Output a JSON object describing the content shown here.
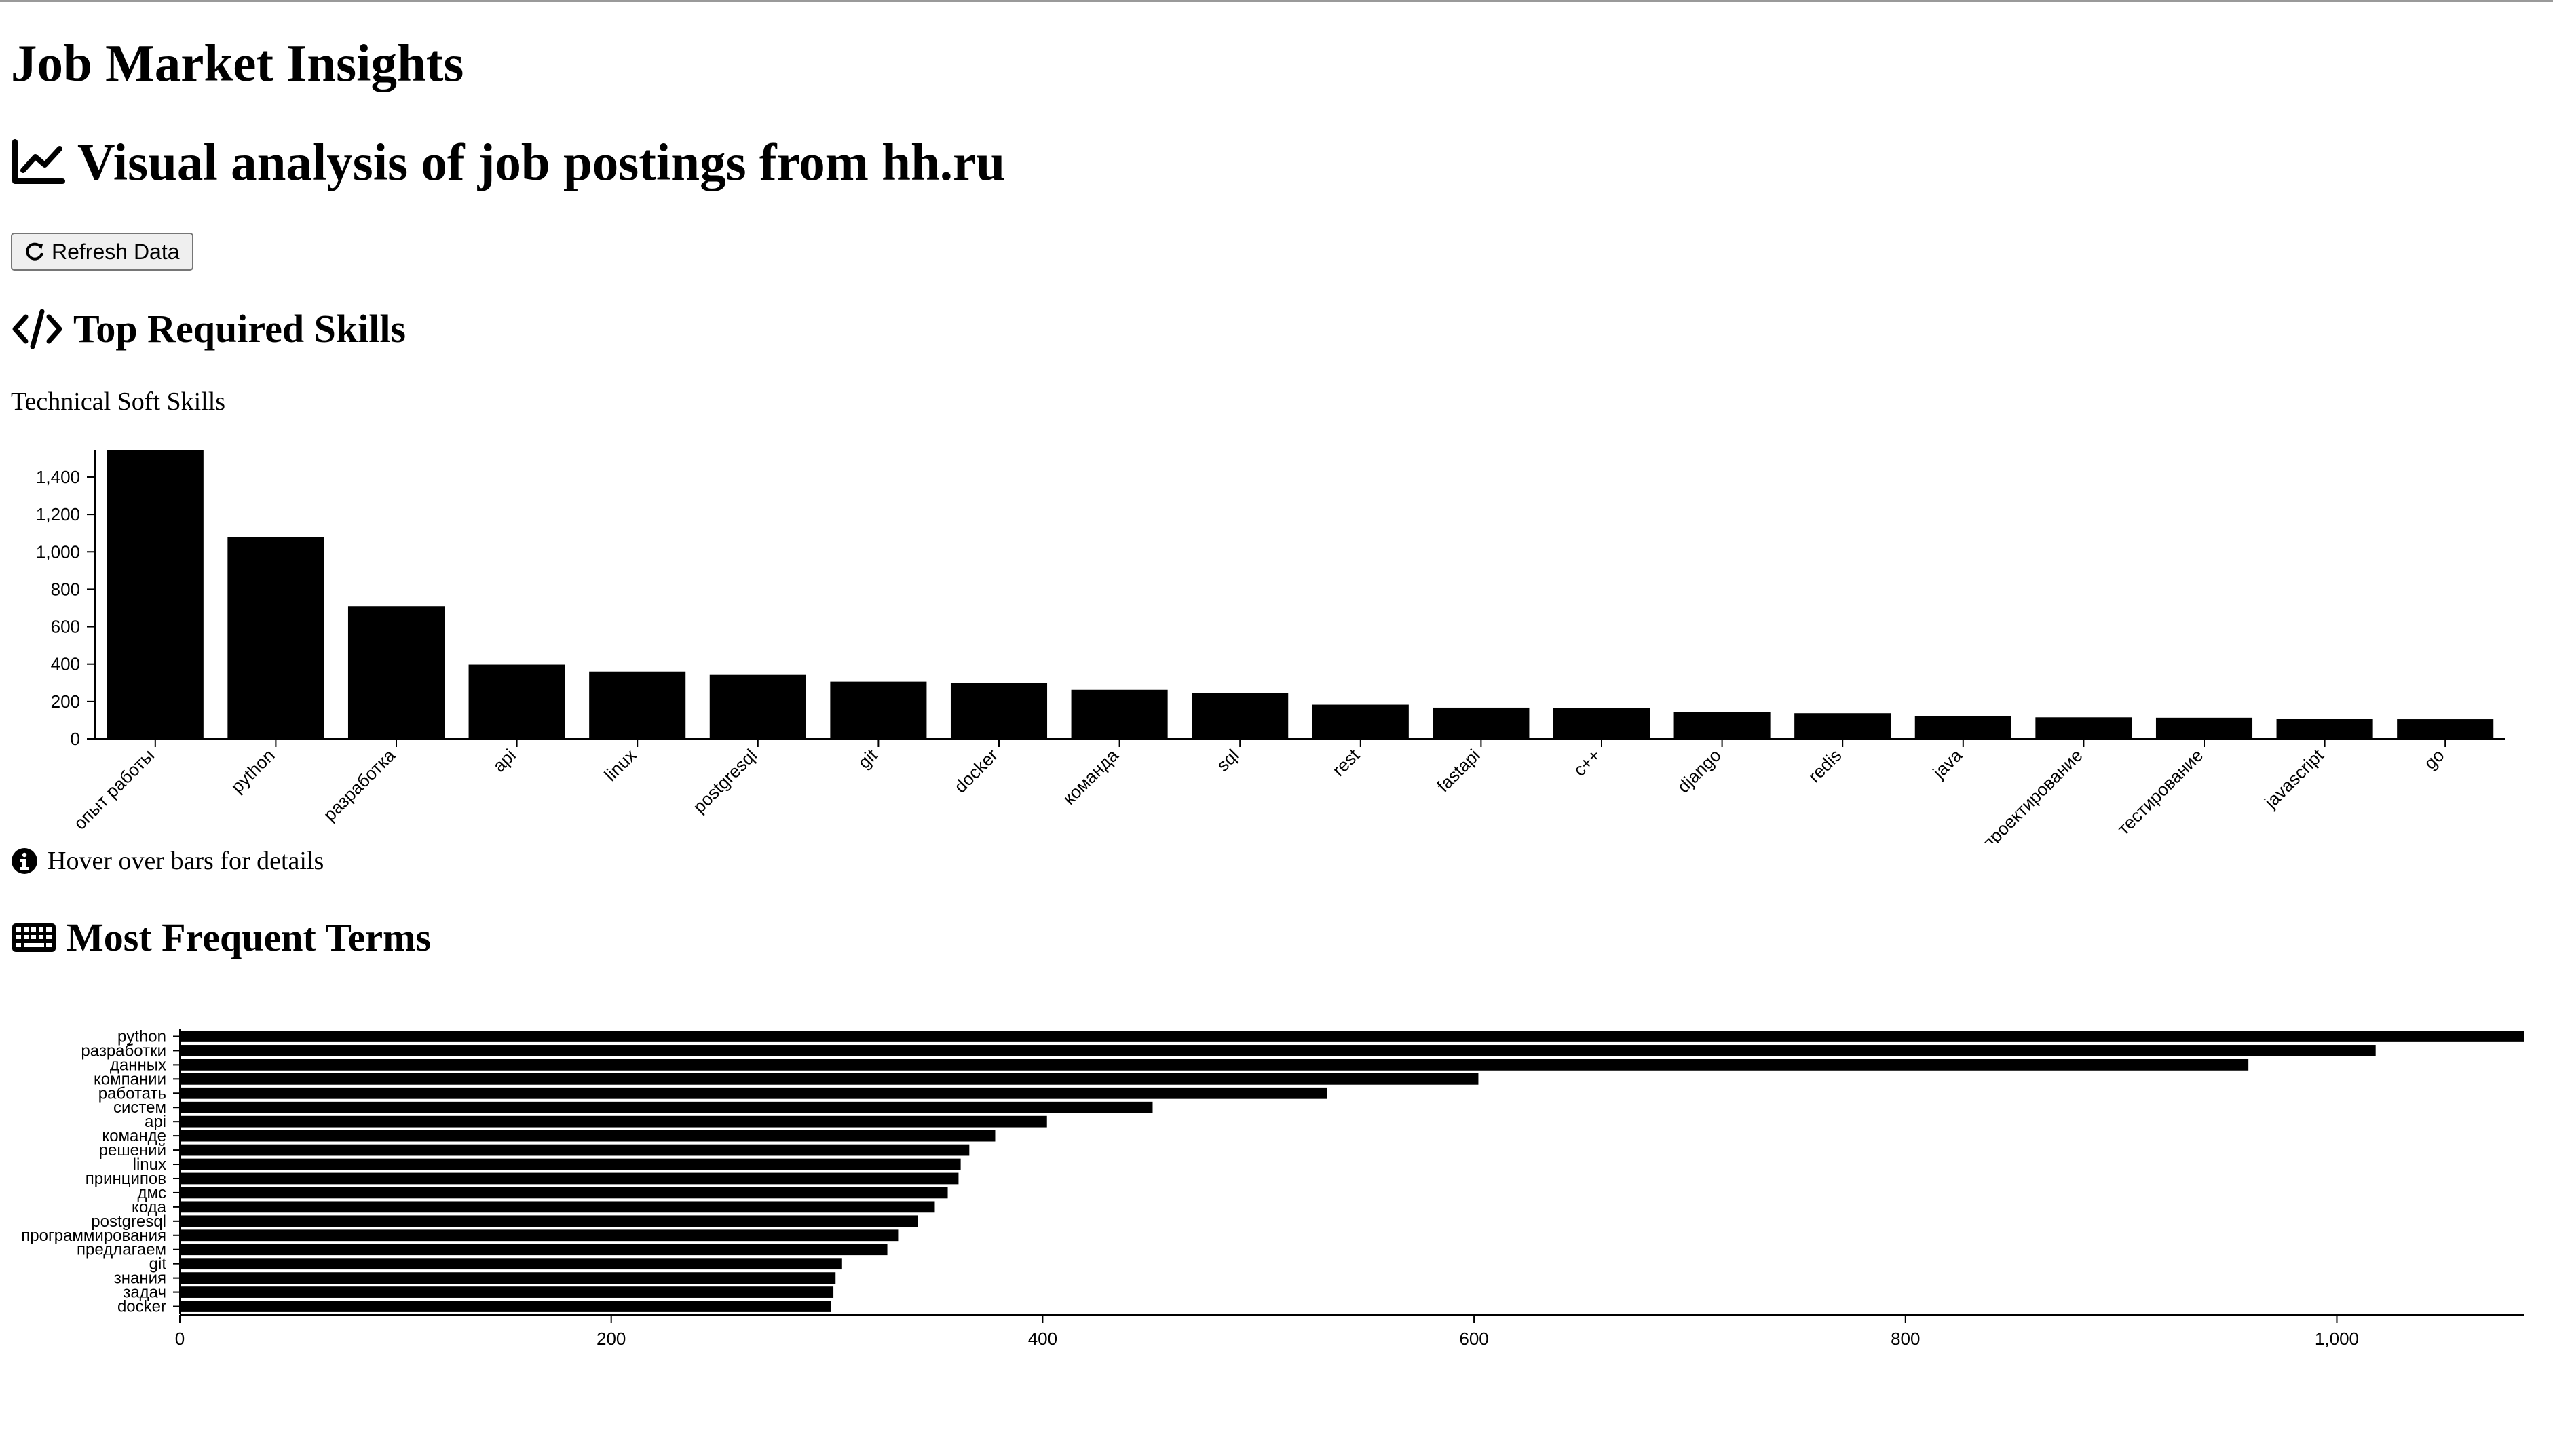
{
  "header": {
    "title": "Job Market Insights",
    "subtitle": "Visual analysis of job postings from hh.ru",
    "subtitle_icon": "chart-line-icon"
  },
  "toolbar": {
    "refresh_label": "Refresh Data",
    "refresh_icon": "refresh-icon"
  },
  "skills_section": {
    "title": "Top Required Skills",
    "icon": "code-icon",
    "filter_label": "Technical Soft Skills",
    "hint": "Hover over bars for details",
    "hint_icon": "info-icon"
  },
  "terms_section": {
    "title": "Most Frequent Terms",
    "icon": "keyboard-icon"
  },
  "chart_data": [
    {
      "type": "bar",
      "categories": [
        "опыт работы",
        "python",
        "разработка",
        "api",
        "linux",
        "postgresql",
        "git",
        "docker",
        "команда",
        "sql",
        "rest",
        "fastapi",
        "c++",
        "django",
        "redis",
        "java",
        "проектирование",
        "тестирование",
        "javascript",
        "go"
      ],
      "values": [
        1545,
        1080,
        710,
        397,
        360,
        342,
        306,
        300,
        262,
        243,
        183,
        167,
        166,
        145,
        137,
        120,
        115,
        113,
        108,
        105
      ],
      "ylim": [
        0,
        1545
      ],
      "yticks": [
        0,
        200,
        400,
        600,
        800,
        1000,
        1200,
        1400
      ],
      "color": "#000000"
    },
    {
      "type": "bar",
      "orientation": "horizontal",
      "categories": [
        "python",
        "разработки",
        "данных",
        "компании",
        "работать",
        "систем",
        "api",
        "команде",
        "решений",
        "linux",
        "принципов",
        "дмс",
        "кода",
        "postgresql",
        "программирования",
        "предлагаем",
        "git",
        "знания",
        "задач",
        "docker"
      ],
      "values": [
        1087,
        1018,
        959,
        602,
        532,
        451,
        402,
        378,
        366,
        362,
        361,
        356,
        350,
        342,
        333,
        328,
        307,
        304,
        303,
        302
      ],
      "xlim": [
        0,
        1087
      ],
      "xticks": [
        0,
        200,
        400,
        600,
        800,
        1000
      ],
      "color": "#000000"
    }
  ]
}
